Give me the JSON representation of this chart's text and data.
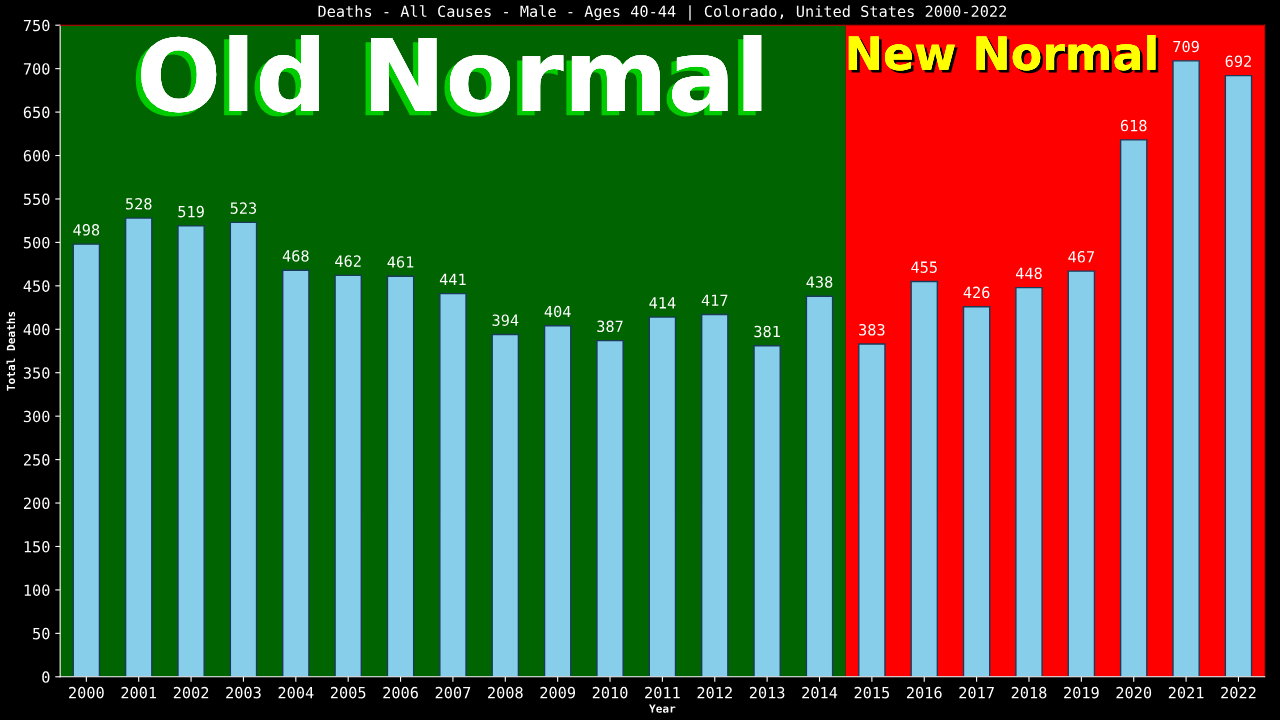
{
  "chart_data": {
    "type": "bar",
    "title": "Deaths - All Causes - Male - Ages 40-44 | Colorado, United States 2000-2022",
    "xlabel": "Year",
    "ylabel": "Total Deaths",
    "categories": [
      "2000",
      "2001",
      "2002",
      "2003",
      "2004",
      "2005",
      "2006",
      "2007",
      "2008",
      "2009",
      "2010",
      "2011",
      "2012",
      "2013",
      "2014",
      "2015",
      "2016",
      "2017",
      "2018",
      "2019",
      "2020",
      "2021",
      "2022"
    ],
    "values": [
      498,
      528,
      519,
      523,
      468,
      462,
      461,
      441,
      394,
      404,
      387,
      414,
      417,
      381,
      438,
      383,
      455,
      426,
      448,
      467,
      618,
      709,
      692
    ],
    "color": "#87ceeb",
    "data_labels": true,
    "ylim": [
      0,
      750
    ],
    "yticks": [
      0,
      50,
      100,
      150,
      200,
      250,
      300,
      350,
      400,
      450,
      500,
      550,
      600,
      650,
      700,
      750
    ],
    "grid": false,
    "legend": false,
    "bands": [
      {
        "axis": "x",
        "from": "2000",
        "to": "2014",
        "label": "Old Normal",
        "color": "#006400"
      },
      {
        "axis": "x",
        "from": "2015",
        "to": "2022",
        "label": "New Normal",
        "color": "#ff0000"
      }
    ]
  }
}
